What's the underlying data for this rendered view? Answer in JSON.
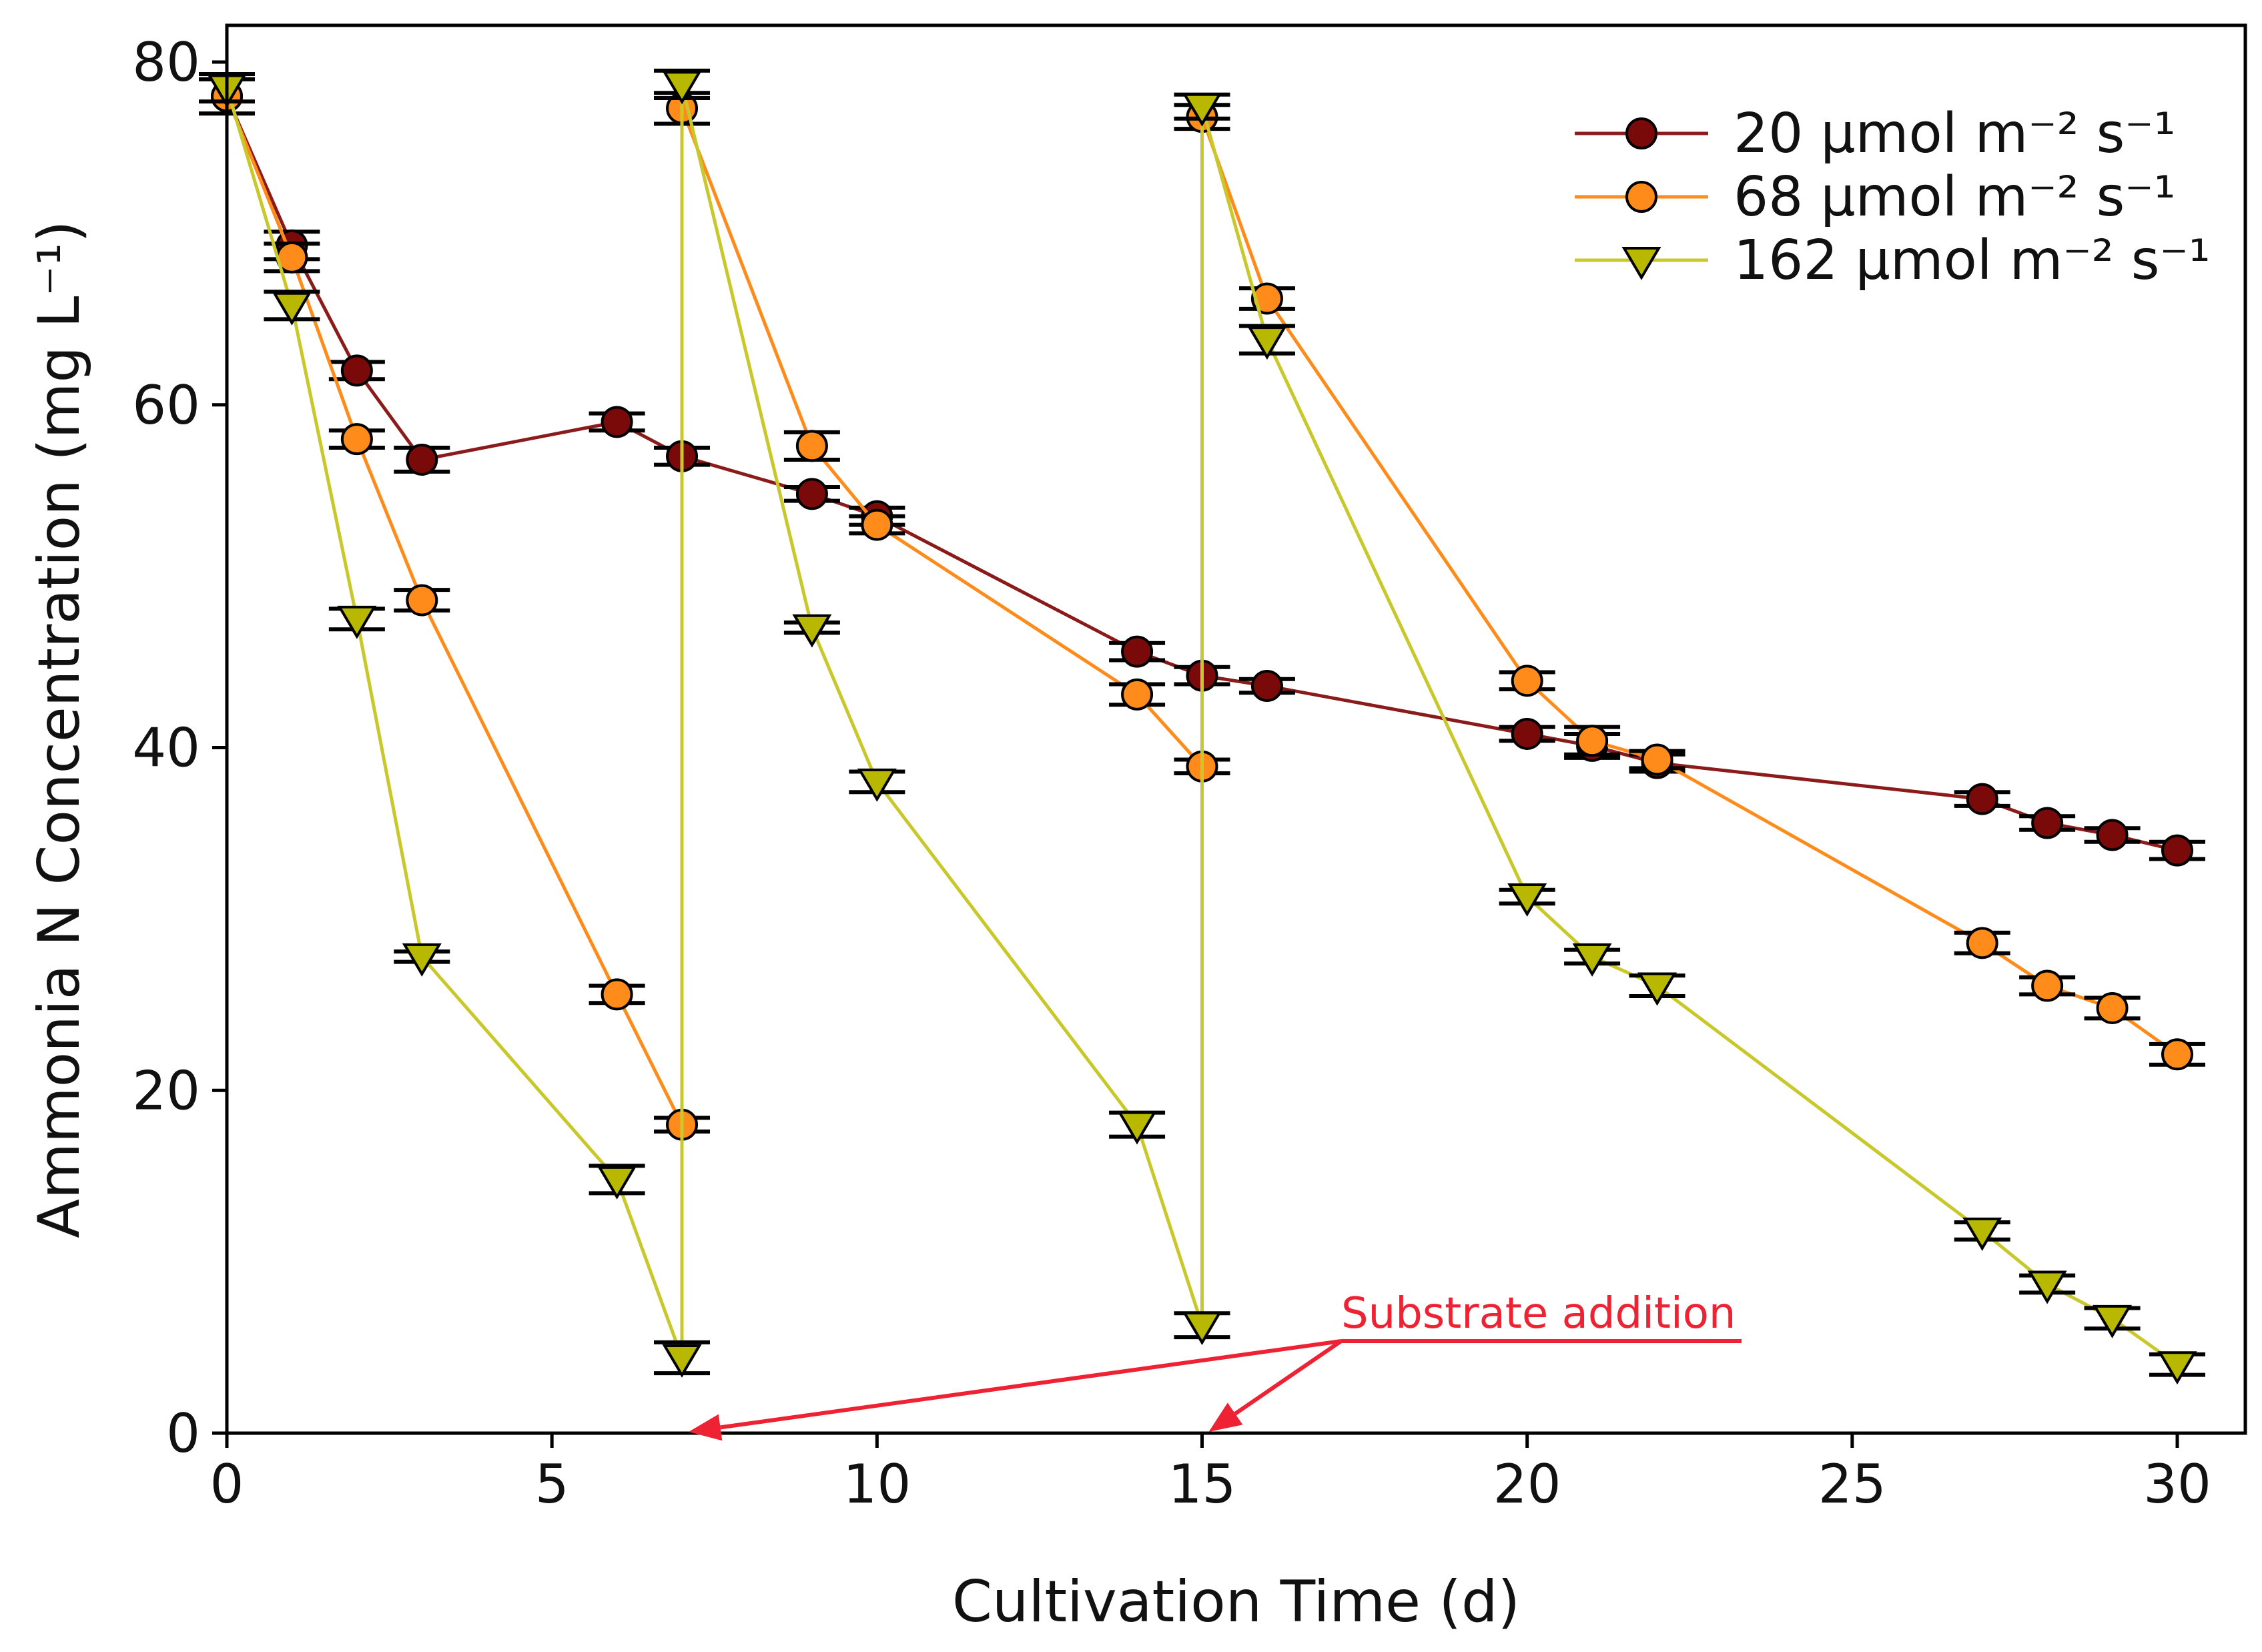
{
  "chart_data": {
    "type": "line",
    "title": "",
    "xlabel": "Cultivation Time (d)",
    "ylabel": "Ammonia N Concentration (mg L⁻¹)",
    "xlim": [
      0,
      30.5
    ],
    "ylim": [
      0,
      81
    ],
    "xticks": [
      "0",
      "5",
      "10",
      "15",
      "20",
      "25",
      "30"
    ],
    "yticks": [
      "0",
      "20",
      "40",
      "60",
      "80"
    ],
    "grid": false,
    "legend_position": "top-right",
    "series": [
      {
        "name": "20 μmol m⁻² s⁻¹",
        "marker": "circle",
        "line_color": "#8B1A1A",
        "marker_color": "#7A0A0A",
        "points": [
          {
            "x": 0,
            "y": 78,
            "err": 1
          },
          {
            "x": 1,
            "y": 69.3,
            "err": 0.8
          },
          {
            "x": 2,
            "y": 62,
            "err": 0.5
          },
          {
            "x": 3,
            "y": 56.8,
            "err": 0.7
          },
          {
            "x": 6,
            "y": 59,
            "err": 0.5
          },
          {
            "x": 7,
            "y": 57,
            "err": 0.5
          },
          {
            "x": 9,
            "y": 54.8,
            "err": 0.4
          },
          {
            "x": 10,
            "y": 53.5,
            "err": 0.5
          },
          {
            "x": 14,
            "y": 45.6,
            "err": 0.5
          },
          {
            "x": 15,
            "y": 44.2,
            "err": 0.5
          },
          {
            "x": 16,
            "y": 43.6,
            "err": 0.4
          },
          {
            "x": 20,
            "y": 40.8,
            "err": 0.4
          },
          {
            "x": 21,
            "y": 40.1,
            "err": 0.7
          },
          {
            "x": 22,
            "y": 39.1,
            "err": 0.5
          },
          {
            "x": 27,
            "y": 37,
            "err": 0.4
          },
          {
            "x": 28,
            "y": 35.6,
            "err": 0.4
          },
          {
            "x": 29,
            "y": 34.9,
            "err": 0.4
          },
          {
            "x": 30,
            "y": 34,
            "err": 0.5
          }
        ]
      },
      {
        "name": "68 μmol m⁻² s⁻¹",
        "marker": "circle",
        "line_color": "#FF8C1A",
        "marker_color": "#FF8C1A",
        "points": [
          {
            "x": 0,
            "y": 78,
            "err": 1
          },
          {
            "x": 1,
            "y": 68.6,
            "err": 0.8
          },
          {
            "x": 2,
            "y": 58,
            "err": 0.5
          },
          {
            "x": 3,
            "y": 48.6,
            "err": 0.6
          },
          {
            "x": 6,
            "y": 25.6,
            "err": 0.5
          },
          {
            "x": 7,
            "y": 18,
            "err": 0.4
          },
          {
            "x": 7,
            "y": 77.3,
            "err": 0.9
          },
          {
            "x": 9,
            "y": 57.6,
            "err": 0.8
          },
          {
            "x": 10,
            "y": 53,
            "err": 0.5
          },
          {
            "x": 14,
            "y": 43.1,
            "err": 0.6
          },
          {
            "x": 15,
            "y": 38.9,
            "err": 0.4
          },
          {
            "x": 15,
            "y": 76.8,
            "err": 0.7
          },
          {
            "x": 16,
            "y": 66.2,
            "err": 0.6
          },
          {
            "x": 20,
            "y": 43.9,
            "err": 0.5
          },
          {
            "x": 21,
            "y": 40.4,
            "err": 0.8
          },
          {
            "x": 22,
            "y": 39.3,
            "err": 0.5
          },
          {
            "x": 27,
            "y": 28.6,
            "err": 0.6
          },
          {
            "x": 28,
            "y": 26.1,
            "err": 0.5
          },
          {
            "x": 29,
            "y": 24.8,
            "err": 0.6
          },
          {
            "x": 30,
            "y": 22.1,
            "err": 0.6
          }
        ]
      },
      {
        "name": "162 μmol m⁻² s⁻¹",
        "marker": "triangle-down",
        "line_color": "#C8C82A",
        "marker_color": "#B8B800",
        "points": [
          {
            "x": 0,
            "y": 78.5,
            "err": 0.8
          },
          {
            "x": 1,
            "y": 65.8,
            "err": 0.8
          },
          {
            "x": 2,
            "y": 47.5,
            "err": 0.6
          },
          {
            "x": 3,
            "y": 27.8,
            "err": 0.3
          },
          {
            "x": 6,
            "y": 14.8,
            "err": 0.8
          },
          {
            "x": 7,
            "y": 4.4,
            "err": 0.9
          },
          {
            "x": 7,
            "y": 78.7,
            "err": 0.8
          },
          {
            "x": 9,
            "y": 47,
            "err": 0.3
          },
          {
            "x": 10,
            "y": 38,
            "err": 0.6
          },
          {
            "x": 14,
            "y": 18,
            "err": 0.7
          },
          {
            "x": 15,
            "y": 6.3,
            "err": 0.7
          },
          {
            "x": 15,
            "y": 77.4,
            "err": 0.7
          },
          {
            "x": 16,
            "y": 63.8,
            "err": 0.8
          },
          {
            "x": 20,
            "y": 31.3,
            "err": 0.4
          },
          {
            "x": 21,
            "y": 27.8,
            "err": 0.4
          },
          {
            "x": 22,
            "y": 26.1,
            "err": 0.6
          },
          {
            "x": 27,
            "y": 11.8,
            "err": 0.5
          },
          {
            "x": 28,
            "y": 8.7,
            "err": 0.5
          },
          {
            "x": 29,
            "y": 6.7,
            "err": 0.6
          },
          {
            "x": 30,
            "y": 4,
            "err": 0.6
          }
        ]
      }
    ],
    "annotations": [
      {
        "text": "Substrate addition",
        "color": "#EE2233",
        "arrows_to": [
          {
            "x": 7,
            "y": 0
          },
          {
            "x": 15,
            "y": 0
          }
        ]
      }
    ]
  }
}
